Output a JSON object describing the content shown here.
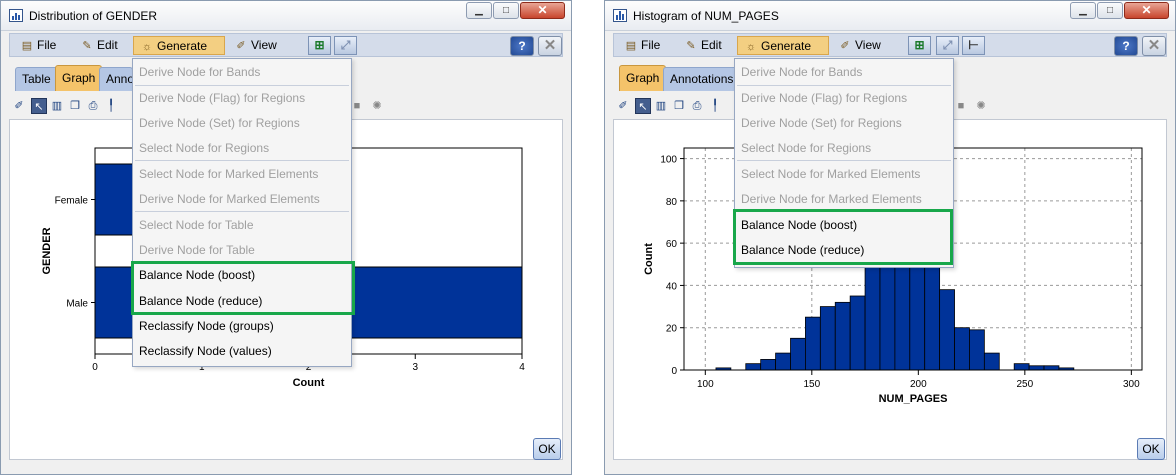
{
  "colors": {
    "accent_highlight": "#18a74a",
    "bar_fill": "#003399",
    "menu_active": "#f3cf82",
    "tab_active": "#f4c36a"
  },
  "menu": {
    "file": "File",
    "edit": "Edit",
    "generate": "Generate",
    "view": "View"
  },
  "generate_menu": [
    "Derive Node for Bands",
    "Derive Node (Flag) for Regions",
    "Derive Node (Set) for Regions",
    "Select Node for Regions",
    "Select Node for Marked Elements",
    "Derive Node for Marked Elements",
    "Select Node for Table",
    "Derive Node for Table",
    "Balance Node (boost)",
    "Balance Node (reduce)",
    "Reclassify Node (groups)",
    "Reclassify Node (values)"
  ],
  "ok_label": "OK",
  "window1": {
    "title": "Distribution of GENDER",
    "tabs": [
      "Table",
      "Graph",
      "Anno"
    ],
    "chart_data": {
      "type": "bar",
      "orientation": "horizontal",
      "categories": [
        "Female",
        "Male"
      ],
      "values": [
        1,
        4
      ],
      "xlabel": "Count",
      "ylabel": "GENDER",
      "xlim": [
        0,
        4
      ],
      "xticks": [
        "0",
        "1",
        "2",
        "3",
        "4"
      ]
    }
  },
  "window2": {
    "title": "Histogram of NUM_PAGES",
    "tabs": [
      "Graph",
      "Annotations"
    ],
    "chart_data": {
      "type": "bar",
      "xlabel": "NUM_PAGES",
      "ylabel": "Count",
      "xlim": [
        90,
        305
      ],
      "ylim": [
        0,
        105
      ],
      "grid": true,
      "xticks": [
        "100",
        "150",
        "200",
        "250",
        "300"
      ],
      "yticks": [
        "0",
        "20",
        "40",
        "60",
        "80",
        "100"
      ],
      "bin_width": 7,
      "bin_starts": [
        105,
        112,
        119,
        126,
        133,
        140,
        147,
        154,
        161,
        168,
        175,
        182,
        189,
        196,
        203,
        210,
        217,
        224,
        231,
        238,
        245,
        252,
        259,
        266,
        273
      ],
      "values": [
        1,
        0,
        3,
        5,
        8,
        15,
        25,
        30,
        32,
        35,
        53,
        60,
        62,
        60,
        55,
        38,
        20,
        19,
        8,
        0,
        3,
        2,
        2,
        1,
        0
      ]
    }
  }
}
